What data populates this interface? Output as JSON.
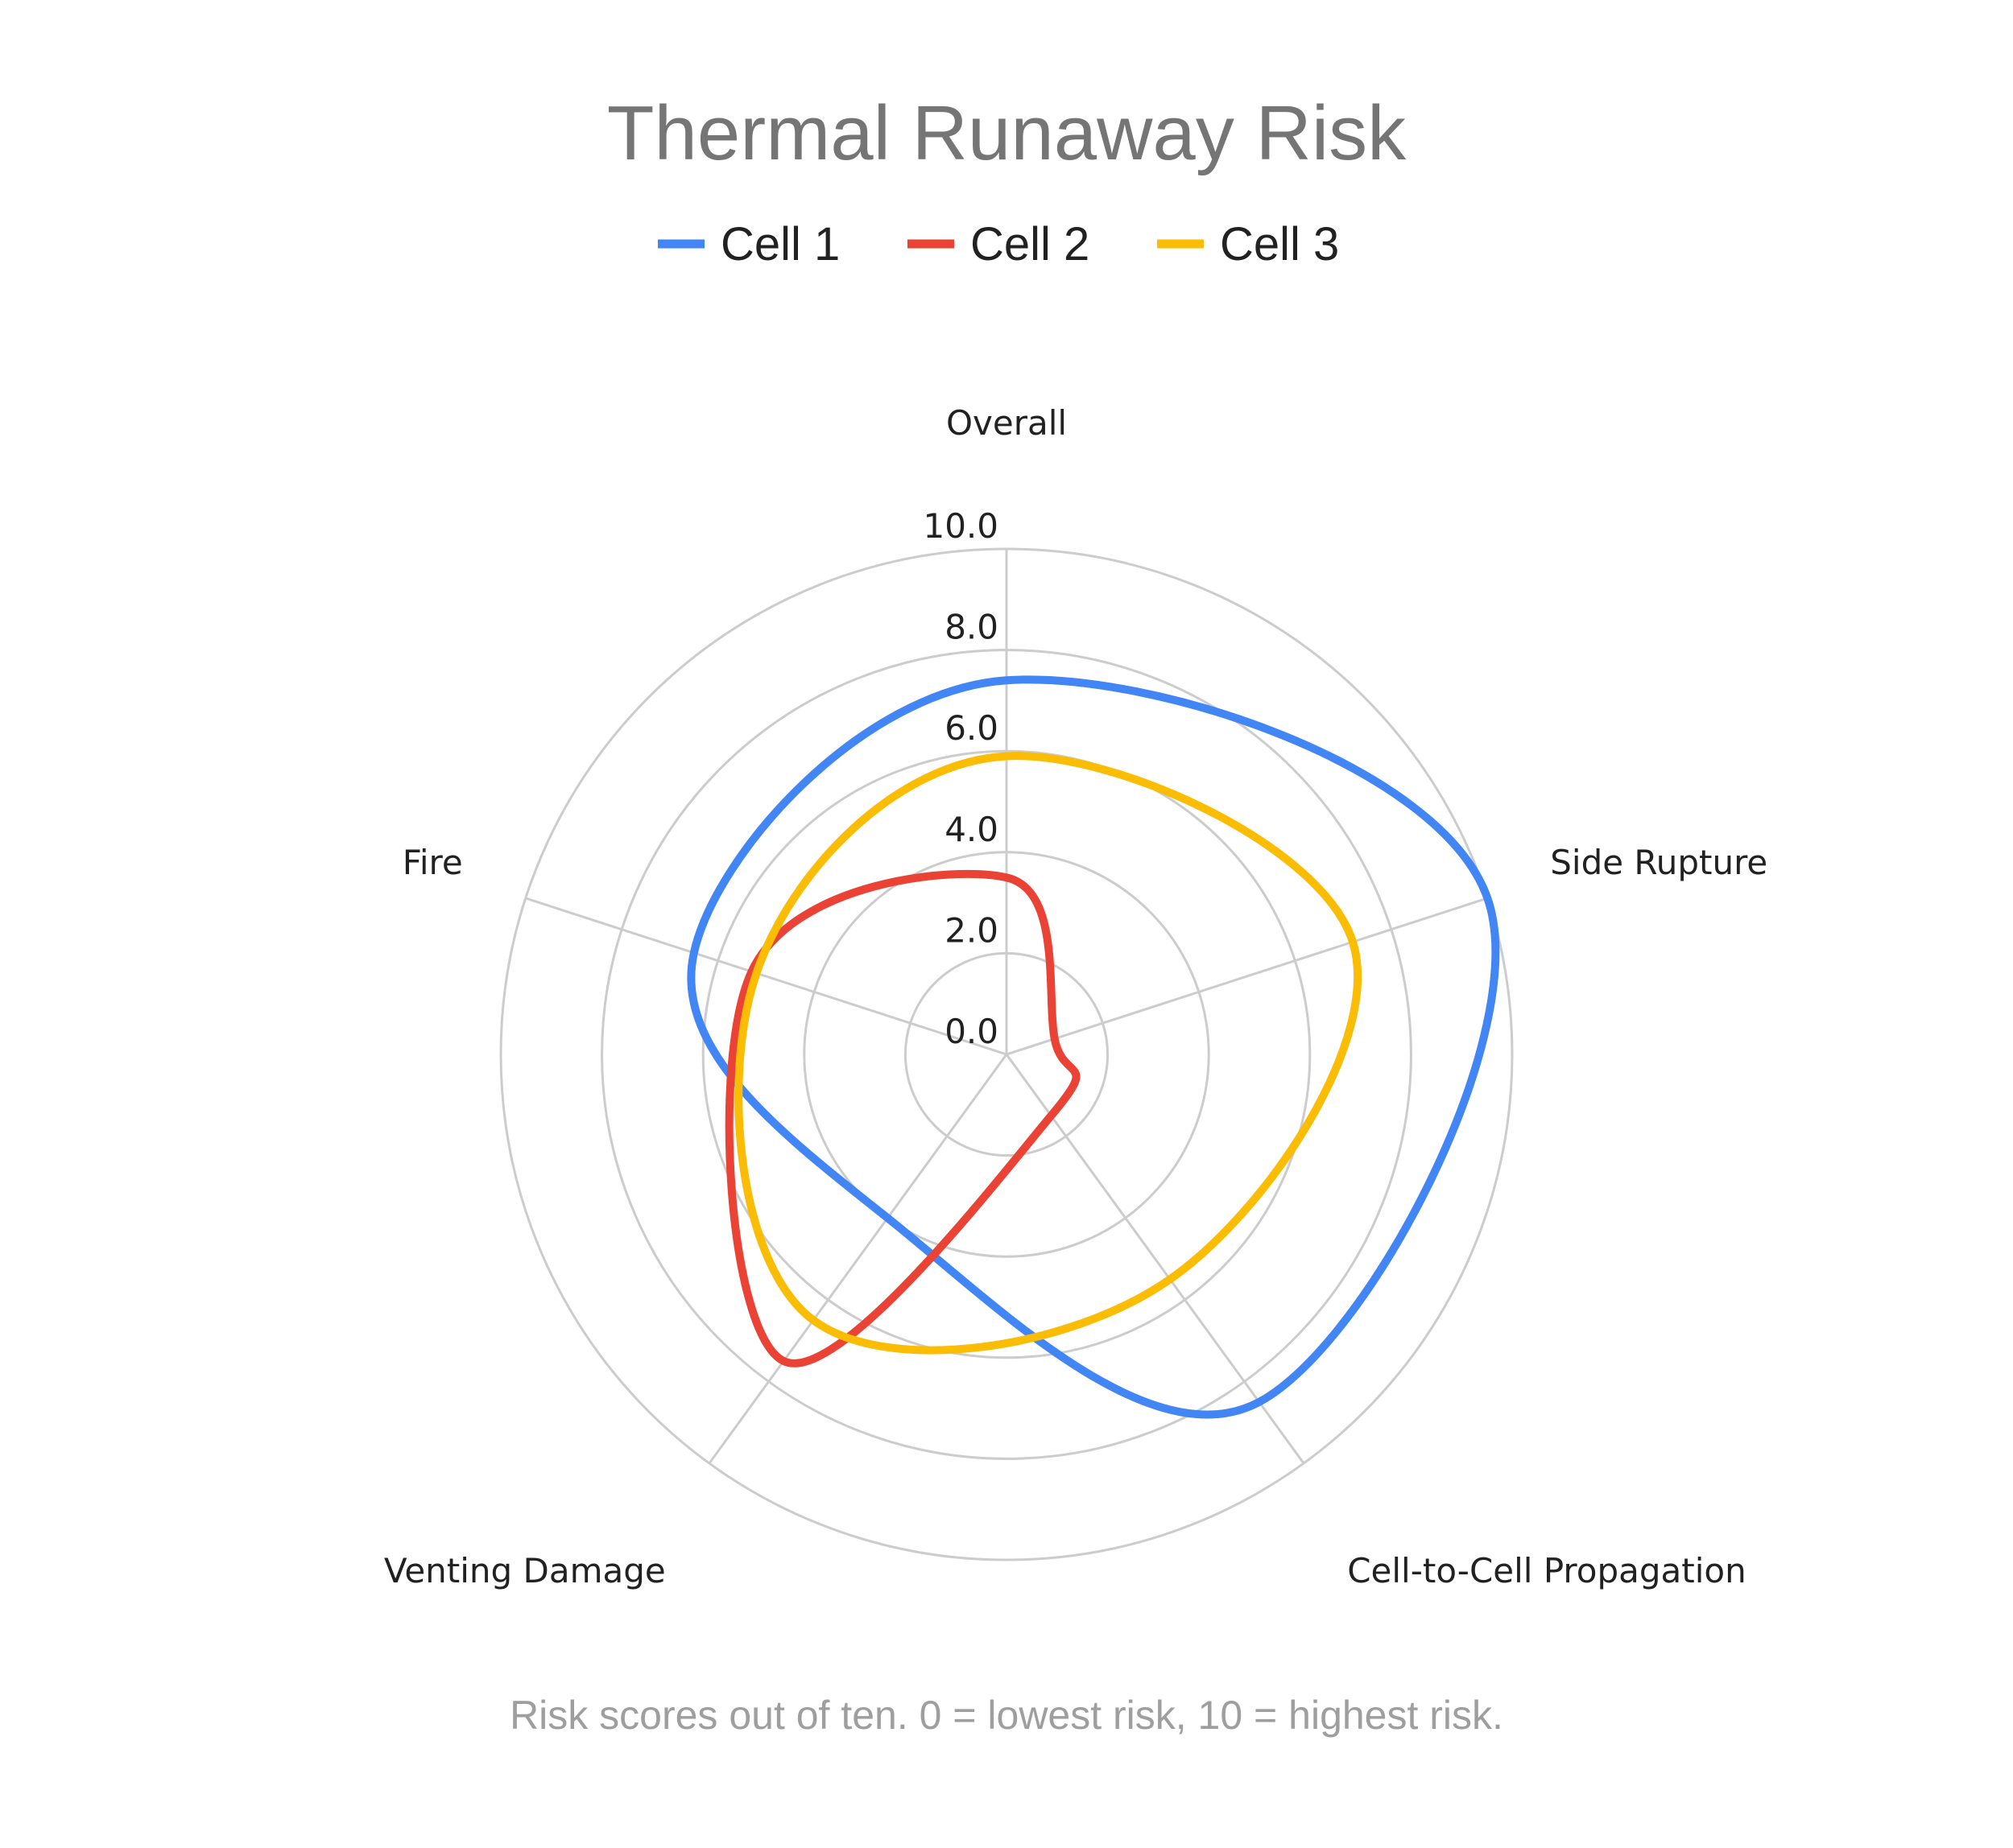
{
  "chart_data": {
    "type": "radar",
    "title": "Thermal Runaway Risk",
    "footnote": "Risk scores out of ten. 0 = lowest risk, 10 = highest risk.",
    "categories": [
      "Overall",
      "Side Rupture",
      "Cell-to-Cell Propagation",
      "Venting Damage",
      "Fire"
    ],
    "range": [
      0,
      10
    ],
    "tick_labels": [
      "0.0",
      "2.0",
      "4.0",
      "6.0",
      "8.0",
      "10.0"
    ],
    "tick_values": [
      0,
      2,
      4,
      6,
      8,
      10
    ],
    "grid": true,
    "legend_position": "top",
    "series": [
      {
        "name": "Cell 1",
        "color": "#4285F4",
        "values": [
          7.4,
          10.0,
          8.5,
          4.0,
          6.5
        ]
      },
      {
        "name": "Cell 2",
        "color": "#EA4335",
        "values": [
          3.5,
          1.0,
          1.5,
          7.5,
          5.3
        ]
      },
      {
        "name": "Cell 3",
        "color": "#FBBC04",
        "values": [
          5.9,
          7.2,
          5.5,
          6.5,
          5.2
        ]
      }
    ]
  }
}
